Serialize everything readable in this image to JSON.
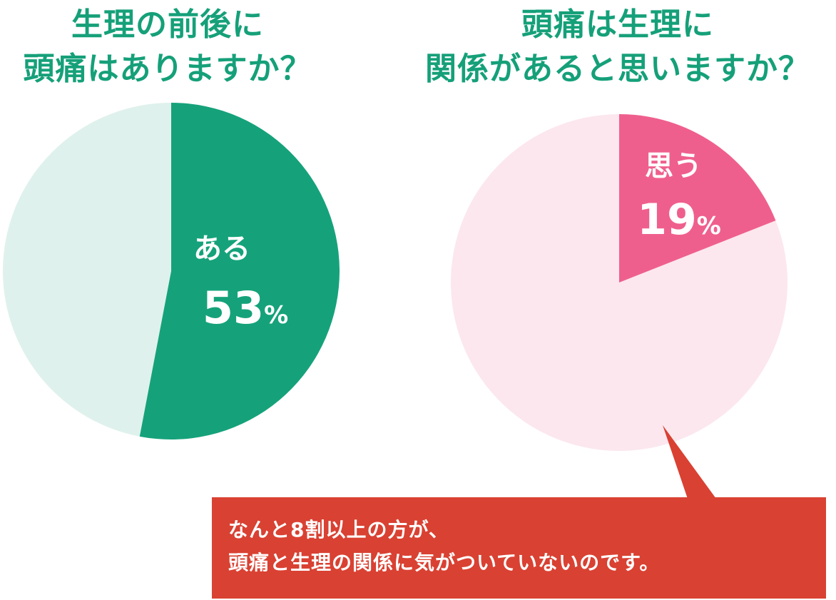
{
  "colors": {
    "title": "#15a079",
    "left_main": "#15a27a",
    "left_rest": "#dff1ec",
    "right_main": "#ef5f8d",
    "right_rest": "#fce7ee",
    "callout": "#d94132",
    "label_text": "#ffffff"
  },
  "left_title": {
    "line1": "生理の前後に",
    "line2": "頭痛はありますか？"
  },
  "right_title": {
    "line1": "頭痛は生理に",
    "line2": "関係があると思いますか？"
  },
  "chart_data": [
    {
      "type": "pie",
      "title": "生理の前後に頭痛はありますか？",
      "slices": [
        {
          "label": "ある",
          "value": 53,
          "display": "53",
          "unit": "%"
        },
        {
          "label": "",
          "value": 47
        }
      ]
    },
    {
      "type": "pie",
      "title": "頭痛は生理に関係があると思いますか？",
      "slices": [
        {
          "label": "思う",
          "value": 19,
          "display": "19",
          "unit": "%"
        },
        {
          "label": "",
          "value": 81
        }
      ]
    }
  ],
  "callout": {
    "line1": "なんと8割以上の方が、",
    "line2": "頭痛と生理の関係に気がついていないのです。"
  }
}
